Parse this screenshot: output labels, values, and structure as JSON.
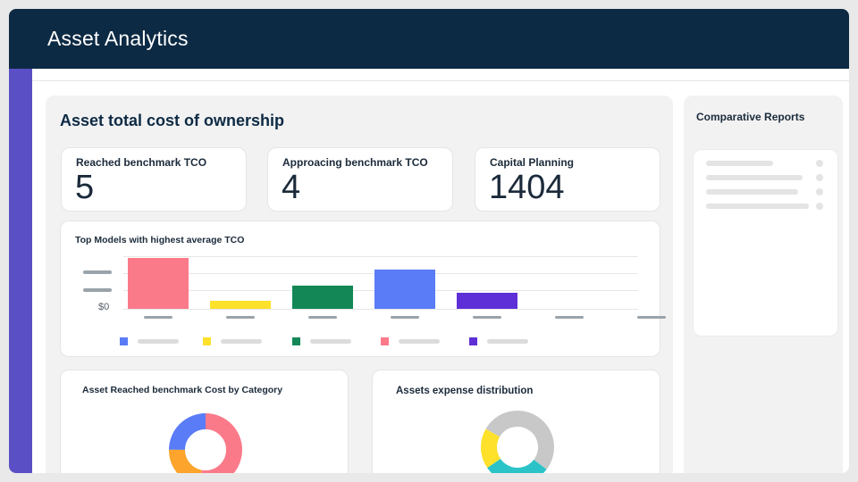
{
  "header": {
    "title": "Asset Analytics"
  },
  "main": {
    "title": "Asset total cost of ownership",
    "kpis": [
      {
        "label": "Reached benchmark TCO",
        "value": "5"
      },
      {
        "label": "Approacing benchmark TCO",
        "value": "4"
      },
      {
        "label": "Capital Planning",
        "value": "1404"
      }
    ],
    "bar_chart": {
      "title": "Top Models with highest average TCO",
      "zero_label": "$0"
    },
    "donut_left": {
      "title": "Asset Reached benchmark Cost by Category"
    },
    "donut_right": {
      "title": "Assets expense distribution"
    }
  },
  "right_panel": {
    "title": "Comparative Reports"
  },
  "colors": {
    "header": "#0d2a44",
    "sidebar": "#5a4fc4",
    "pink": "#fb7a8a",
    "yellow": "#fde12b",
    "green": "#138856",
    "blue": "#5a7cf7",
    "purple": "#5e2fd6",
    "orange": "#fca42b",
    "teal": "#2cc3c8",
    "gray": "#c8c8c8"
  },
  "chart_data": [
    {
      "type": "bar",
      "title": "Top Models with highest average TCO",
      "categories": [
        "",
        "",
        "",
        "",
        "",
        "",
        ""
      ],
      "values": [
        100,
        15,
        45,
        78,
        31,
        0,
        0
      ],
      "colors": [
        "#fb7a8a",
        "#fde12b",
        "#138856",
        "#5a7cf7",
        "#5e2fd6",
        "",
        ""
      ],
      "ylabel": "",
      "ylim": [
        0,
        100
      ],
      "ytick_labels": [
        "",
        "",
        "$0"
      ],
      "legend_colors": [
        "#5a7cf7",
        "#fde12b",
        "#138856",
        "#fb7a8a",
        "#5e2fd6"
      ]
    },
    {
      "type": "pie",
      "title": "Asset Reached benchmark Cost by Category",
      "values": [
        53,
        22,
        25
      ],
      "colors": [
        "#fb7a8a",
        "#fca42b",
        "#5a7cf7"
      ]
    },
    {
      "type": "pie",
      "title": "Assets expense distribution",
      "values": [
        52,
        30,
        18
      ],
      "colors": [
        "#c8c8c8",
        "#2cc3c8",
        "#fde12b"
      ]
    }
  ]
}
